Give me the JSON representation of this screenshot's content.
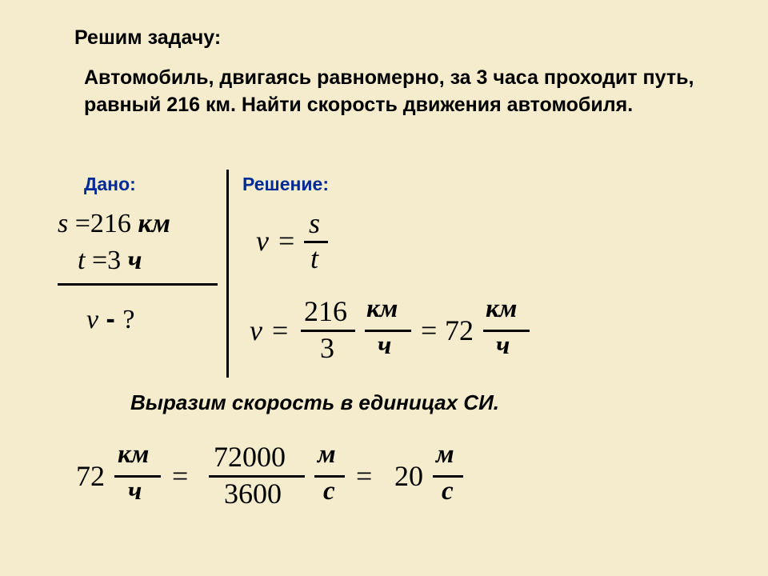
{
  "colors": {
    "background": "#f4eccc",
    "text": "#000000",
    "heading": "#002a95"
  },
  "title": "Решим задачу:",
  "problem": "Автомобиль, двигаясь равномерно, за 3 часа проходит путь, равный 216 км. Найти скорость движения автомобиля.",
  "labels": {
    "given": "Дано:",
    "solution": "Решение:"
  },
  "given": {
    "s_var": "s",
    "s_eq": " =",
    "s_val": "216",
    "s_unit": " км",
    "t_var": "t",
    "t_eq": " =",
    "t_val": "3",
    "t_unit": " ч",
    "find_var": "v",
    "find_dash": " - ",
    "find_q": "?"
  },
  "formula1": {
    "v": "v",
    "eq": "=",
    "num": "s",
    "den": "t"
  },
  "formula2": {
    "v": "v",
    "eq": "=",
    "n1": "216",
    "d1": "3",
    "n2": "км",
    "d2": "ч",
    "eq2": "=",
    "r": "72",
    "n3": "км",
    "d3": "ч"
  },
  "si_text": "Выразим скорость в единицах СИ.",
  "formula3": {
    "r1": "72",
    "n1": "км",
    "d1": "ч",
    "eq1": "=",
    "n2": "72000",
    "d2": "3600",
    "n3": "м",
    "d3": "с",
    "eq2": "=",
    "r2": "20",
    "n4": "м",
    "d4": "с"
  }
}
